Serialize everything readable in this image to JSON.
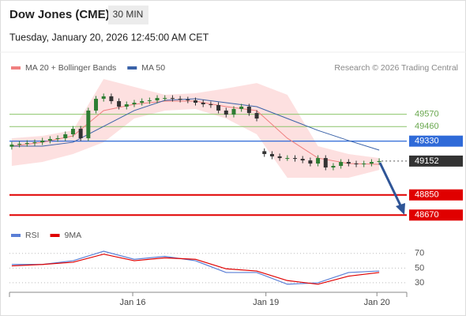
{
  "header": {
    "title": "Dow Jones (CME)",
    "timeframe": "30 MIN",
    "datetime": "Tuesday, January 20, 2026 12:45:00 AM CET"
  },
  "chart_data": [
    {
      "type": "candlestick",
      "source": "Research © 2026 Trading Central",
      "up_color": "#2e7d32",
      "down_color": "#333333",
      "open": [
        49280,
        49299,
        49306,
        49313,
        49320,
        49335,
        49349,
        49356,
        49391,
        49440,
        49356,
        49603,
        49708,
        49730,
        49687,
        49638,
        49659,
        49673,
        49687,
        49694,
        49715,
        49715,
        49708,
        49701,
        49694,
        49673,
        49659,
        49652,
        49603,
        49567,
        49617,
        49638,
        49581,
        49240,
        49215,
        49194,
        49179,
        49179,
        49172,
        49158,
        49130,
        49179,
        49095,
        49109,
        49144,
        49130,
        49123,
        49130,
        49144
      ],
      "high": [
        49324,
        49331,
        49338,
        49345,
        49360,
        49374,
        49381,
        49416,
        49465,
        49465,
        49628,
        49733,
        49755,
        49755,
        49712,
        49684,
        49698,
        49712,
        49719,
        49740,
        49740,
        49740,
        49733,
        49726,
        49719,
        49698,
        49684,
        49677,
        49628,
        49642,
        49663,
        49663,
        49606,
        49265,
        49240,
        49219,
        49204,
        49204,
        49197,
        49183,
        49204,
        49204,
        49134,
        49169,
        49169,
        49155,
        49155,
        49169,
        49177
      ],
      "low": [
        49255,
        49274,
        49281,
        49288,
        49295,
        49310,
        49324,
        49331,
        49366,
        49331,
        49331,
        49578,
        49683,
        49662,
        49613,
        49613,
        49634,
        49648,
        49662,
        49669,
        49690,
        49683,
        49676,
        49669,
        49648,
        49634,
        49627,
        49578,
        49542,
        49542,
        49592,
        49556,
        49507,
        49190,
        49169,
        49154,
        49154,
        49147,
        49133,
        49105,
        49105,
        49070,
        49070,
        49084,
        49105,
        49098,
        49098,
        49105,
        49119
      ],
      "close": [
        49299,
        49306,
        49313,
        49320,
        49335,
        49349,
        49356,
        49391,
        49440,
        49356,
        49603,
        49708,
        49730,
        49687,
        49638,
        49659,
        49673,
        49687,
        49694,
        49715,
        49715,
        49708,
        49701,
        49694,
        49673,
        49659,
        49652,
        49603,
        49567,
        49617,
        49638,
        49581,
        49532,
        49215,
        49194,
        49179,
        49179,
        49172,
        49158,
        49130,
        49179,
        49095,
        49109,
        49144,
        49130,
        49123,
        49130,
        49144,
        49152
      ],
      "series": [
        {
          "name": "MA 20 + Bollinger Bands",
          "color": "#f08080",
          "band_color": "#fde0e0",
          "x": [
            0,
            4,
            8,
            12,
            16,
            20,
            24,
            28,
            32,
            36,
            40,
            44,
            48
          ],
          "values": [
            49285,
            49320,
            49377,
            49603,
            49659,
            49687,
            49687,
            49638,
            49603,
            49356,
            49179,
            49130,
            49123
          ],
          "upper": [
            49356,
            49377,
            49426,
            49885,
            49814,
            49744,
            49758,
            49800,
            49849,
            49744,
            49285,
            49215,
            49179
          ],
          "lower": [
            49109,
            49144,
            49215,
            49320,
            49532,
            49603,
            49617,
            49532,
            49391,
            49003,
            49003,
            49003,
            49073
          ]
        },
        {
          "name": "MA 50",
          "color": "#3a62a8",
          "x": [
            0,
            4,
            8,
            12,
            16,
            20,
            24,
            28,
            32,
            36,
            40,
            44,
            48
          ],
          "values": [
            49285,
            49285,
            49320,
            49462,
            49603,
            49694,
            49708,
            49673,
            49638,
            49532,
            49426,
            49335,
            49250
          ]
        }
      ],
      "levels": [
        {
          "value": 49570,
          "color": "#8cc46a",
          "box": false
        },
        {
          "value": 49460,
          "color": "#8cc46a",
          "box": false
        },
        {
          "value": 49330,
          "color": "#2f6ad8",
          "box": true
        },
        {
          "value": 49152,
          "color": "#333333",
          "box": true,
          "dotted": true
        },
        {
          "value": 48850,
          "color": "#e00000",
          "box": true
        },
        {
          "value": 48670,
          "color": "#e00000",
          "box": true
        }
      ],
      "xlim": [
        -0.3,
        51.6
      ],
      "ylim": [
        48580,
        49920
      ]
    },
    {
      "type": "line",
      "series": [
        {
          "name": "RSI",
          "color": "#5a7fd6",
          "x": [
            0,
            4,
            8,
            12,
            16,
            20,
            24,
            28,
            32,
            36,
            40,
            44,
            48
          ],
          "values": [
            55,
            55,
            60,
            73,
            62,
            66,
            60,
            44,
            44,
            28,
            30,
            44,
            46
          ]
        },
        {
          "name": "9MA",
          "color": "#e00000",
          "x": [
            0,
            4,
            8,
            12,
            16,
            20,
            24,
            28,
            32,
            36,
            40,
            44,
            48
          ],
          "values": [
            53,
            55,
            58,
            69,
            60,
            64,
            62,
            49,
            46,
            33,
            28,
            39,
            44
          ]
        }
      ],
      "xlim": [
        -0.3,
        51.6
      ],
      "ylim": [
        17,
        87
      ],
      "yticks": [
        30,
        50,
        70
      ],
      "xticks": [
        {
          "value": 15.8,
          "label": "Jan 16"
        },
        {
          "value": 33.2,
          "label": "Jan 19"
        },
        {
          "value": 47.7,
          "label": "Jan 20"
        }
      ]
    }
  ]
}
